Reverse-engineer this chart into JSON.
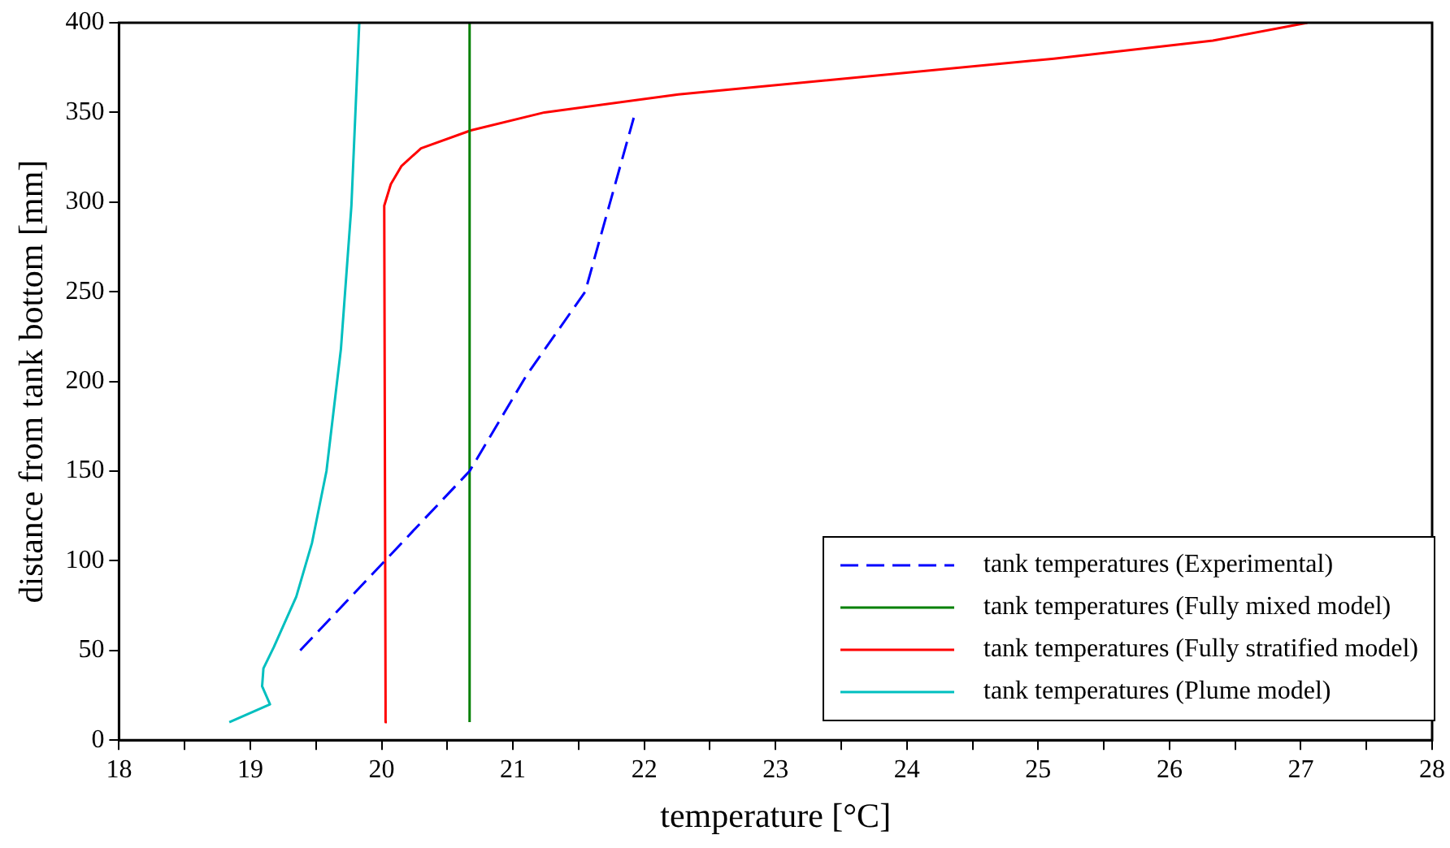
{
  "chart_data": {
    "type": "line",
    "xlabel": "temperature [°C]",
    "ylabel": "distance from tank bottom [mm]",
    "xlim": [
      18,
      28
    ],
    "ylim": [
      0,
      400
    ],
    "xticks": [
      18,
      {
        "value": 18.5,
        "label": null
      },
      19,
      {
        "value": 19.5,
        "label": null
      },
      20,
      {
        "value": 20.5,
        "label": null
      },
      21,
      {
        "value": 21.5,
        "label": null
      },
      22,
      {
        "value": 22.5,
        "label": null
      },
      23,
      {
        "value": 23.5,
        "label": null
      },
      24,
      {
        "value": 24.5,
        "label": null
      },
      25,
      {
        "value": 25.5,
        "label": null
      },
      26,
      {
        "value": 26.5,
        "label": null
      },
      27,
      {
        "value": 27.5,
        "label": null
      },
      28
    ],
    "yticks": [
      0,
      50,
      100,
      150,
      200,
      250,
      300,
      350,
      400
    ],
    "grid": false,
    "legend": "bottom right",
    "marker": "none",
    "series": [
      {
        "name": "tank temperatures (Experimental)",
        "color": "#0000ff",
        "line_style": "dashed",
        "x": [
          19.38,
          20.67,
          21.1,
          21.55,
          21.92
        ],
        "values": [
          50,
          150,
          203,
          250,
          347
        ]
      },
      {
        "name": "tank temperatures (Fully mixed model)",
        "color": "#008000",
        "line_style": "solid",
        "x": [
          20.67,
          20.67
        ],
        "values": [
          10,
          400
        ]
      },
      {
        "name": "tank temperatures (Fully stratified model)",
        "color": "#ff0000",
        "line_style": "solid",
        "x": [
          20.04,
          20.03,
          20.02,
          20.07,
          20.15,
          20.3,
          20.68,
          21.24,
          22.26,
          25.12,
          26.33,
          27.05
        ],
        "values": [
          10,
          21,
          298,
          310,
          320,
          330,
          340,
          350,
          360,
          380,
          390,
          400
        ]
      },
      {
        "name": "tank temperatures (Plume model)",
        "color": "#00bfbf",
        "line_style": "solid",
        "x": [
          18.84,
          19.15,
          19.09,
          19.1,
          19.18,
          19.35,
          19.47,
          19.58,
          19.69,
          19.77,
          19.83
        ],
        "values": [
          10,
          20,
          30,
          40,
          52,
          80,
          110,
          150,
          218,
          298,
          400
        ]
      }
    ]
  }
}
